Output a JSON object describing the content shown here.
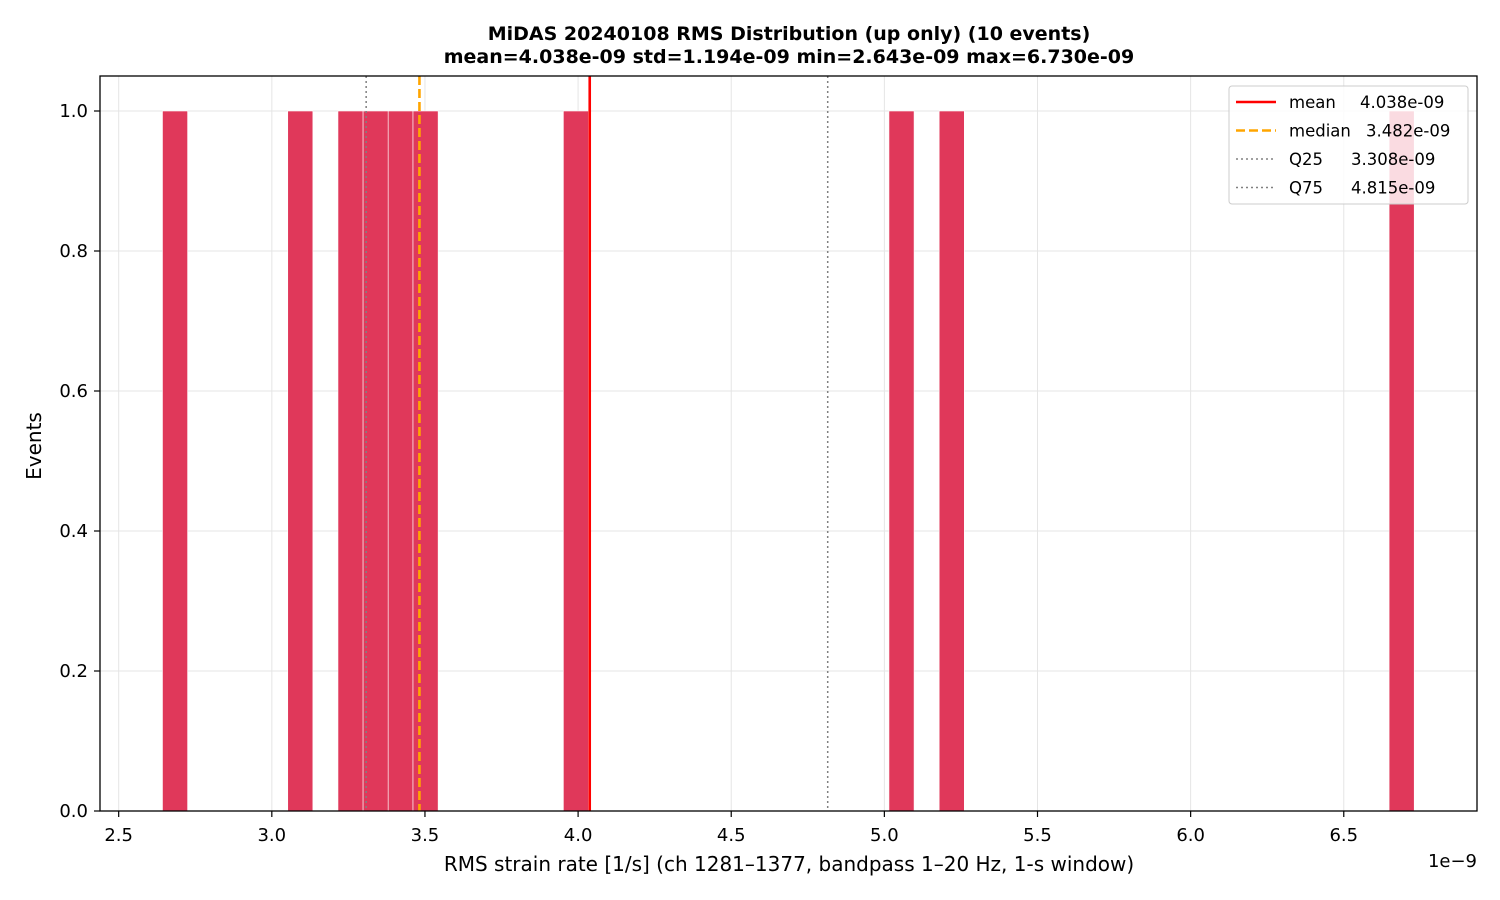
{
  "chart_data": {
    "type": "bar",
    "title": "MiDAS 20240108  RMS Distribution  (up only)  (10 events)",
    "subtitle": "mean=4.038e-09  std=1.194e-09  min=2.643e-09  max=6.730e-09",
    "xlabel": "RMS strain rate [1/s]  (ch 1281–1377, bandpass 1–20 Hz, 1-s window)",
    "ylabel": "Events",
    "x_offset_label": "1e−9",
    "xlim": [
      2.439,
      6.935
    ],
    "ylim": [
      0,
      1.05
    ],
    "x_ticks": [
      2.5,
      3.0,
      3.5,
      4.0,
      4.5,
      5.0,
      5.5,
      6.0,
      6.5
    ],
    "x_tick_labels": [
      "2.5",
      "3.0",
      "3.5",
      "4.0",
      "4.5",
      "5.0",
      "5.5",
      "6.0",
      "6.5"
    ],
    "y_ticks": [
      0.0,
      0.2,
      0.4,
      0.6,
      0.8,
      1.0
    ],
    "y_tick_labels": [
      "0.0",
      "0.2",
      "0.4",
      "0.6",
      "0.8",
      "1.0"
    ],
    "grid": true,
    "bar_color": "#e0385a",
    "bars": [
      {
        "x0": 2.643,
        "x1": 2.725,
        "count": 1
      },
      {
        "x0": 3.052,
        "x1": 3.134,
        "count": 1
      },
      {
        "x0": 3.216,
        "x1": 3.298,
        "count": 1
      },
      {
        "x0": 3.298,
        "x1": 3.38,
        "count": 1
      },
      {
        "x0": 3.38,
        "x1": 3.461,
        "count": 1
      },
      {
        "x0": 3.461,
        "x1": 3.543,
        "count": 1
      },
      {
        "x0": 3.952,
        "x1": 4.034,
        "count": 1
      },
      {
        "x0": 5.015,
        "x1": 5.097,
        "count": 1
      },
      {
        "x0": 5.179,
        "x1": 5.261,
        "count": 1
      },
      {
        "x0": 6.648,
        "x1": 6.73,
        "count": 1
      }
    ],
    "vlines": [
      {
        "name": "mean",
        "value_label": "4.038e-09",
        "x": 4.038,
        "color": "#ff0000",
        "style": "solid"
      },
      {
        "name": "median",
        "value_label": "3.482e-09",
        "x": 3.482,
        "color": "#ffa500",
        "style": "dashed"
      },
      {
        "name": "Q25",
        "value_label": "3.308e-09",
        "x": 3.308,
        "color": "#808080",
        "style": "dotted"
      },
      {
        "name": "Q75",
        "value_label": "4.815e-09",
        "x": 4.815,
        "color": "#808080",
        "style": "dotted"
      }
    ],
    "legend_position": "upper right"
  }
}
